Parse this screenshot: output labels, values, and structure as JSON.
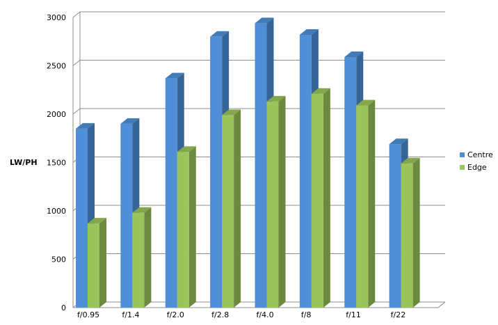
{
  "chart_data": {
    "type": "bar",
    "categories": [
      "f/0.95",
      "f/1.4",
      "f/2.0",
      "f/2.8",
      "f/4.0",
      "f/8",
      "f/11",
      "f/22"
    ],
    "series": [
      {
        "name": "Centre",
        "color": "#4f8fd8",
        "values": [
          1850,
          1900,
          2370,
          2800,
          2940,
          2820,
          2590,
          1690
        ]
      },
      {
        "name": "Edge",
        "color": "#9bc45a",
        "values": [
          870,
          980,
          1610,
          1990,
          2130,
          2210,
          2090,
          1490
        ]
      }
    ],
    "ylabel": "LW/PH",
    "ylim": [
      0,
      3000
    ],
    "yticks": [
      0,
      500,
      1000,
      1500,
      2000,
      2500,
      3000
    ],
    "grid": true,
    "legend": "right",
    "style": "3d-column"
  }
}
